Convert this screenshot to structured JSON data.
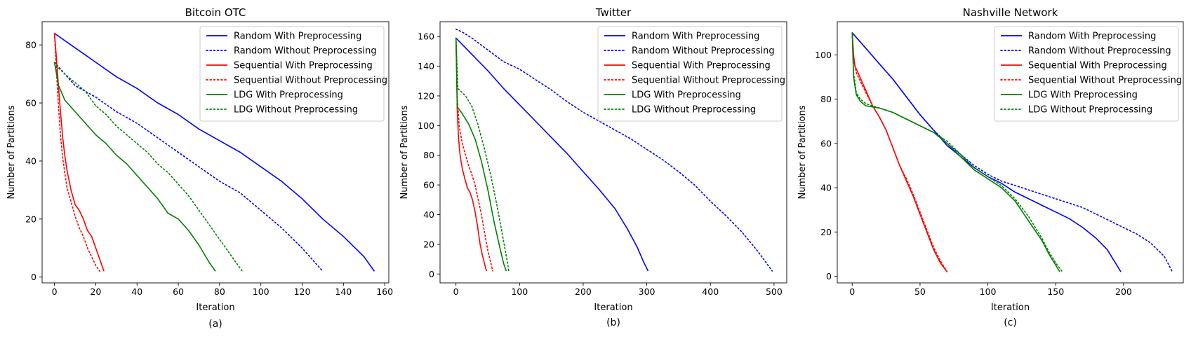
{
  "chart_data": [
    {
      "type": "line",
      "title": "Bitcoin OTC",
      "xlabel": "Iteration",
      "ylabel": "Number of Partitions",
      "caption": "(a)",
      "xlim": [
        -6,
        162
      ],
      "ylim": [
        -2,
        88
      ],
      "xticks": [
        0,
        20,
        40,
        60,
        80,
        100,
        120,
        140,
        160
      ],
      "yticks": [
        0,
        20,
        40,
        60,
        80
      ],
      "legend_position": "top-right",
      "series": [
        {
          "name": "Random With Preprocessing",
          "color": "#0000ff",
          "dash": "solid",
          "x": [
            0,
            10,
            20,
            30,
            40,
            50,
            60,
            70,
            80,
            90,
            100,
            110,
            120,
            130,
            140,
            150,
            155
          ],
          "y": [
            84,
            79,
            74,
            69,
            65,
            60,
            56,
            51,
            47,
            43,
            38,
            33,
            27,
            20,
            14,
            7,
            2
          ]
        },
        {
          "name": "Random Without Preprocessing",
          "color": "#0000ff",
          "dash": "dotted",
          "x": [
            0,
            10,
            20,
            30,
            40,
            50,
            60,
            70,
            80,
            90,
            100,
            110,
            120,
            130
          ],
          "y": [
            74,
            66,
            62,
            57,
            53,
            48,
            43,
            38,
            33,
            29,
            23,
            17,
            10,
            2
          ]
        },
        {
          "name": "Sequential With Preprocessing",
          "color": "#ff0000",
          "dash": "solid",
          "x": [
            0,
            1,
            2,
            3,
            4,
            5,
            6,
            8,
            10,
            12,
            14,
            16,
            18,
            20,
            22,
            24
          ],
          "y": [
            84,
            75,
            65,
            56,
            48,
            42,
            37,
            30,
            25,
            23,
            20,
            16,
            14,
            10,
            6,
            2
          ]
        },
        {
          "name": "Sequential Without Preprocessing",
          "color": "#ff0000",
          "dash": "dotted",
          "x": [
            0,
            1,
            2,
            3,
            4,
            5,
            6,
            8,
            10,
            12,
            14,
            16,
            18,
            20,
            22
          ],
          "y": [
            84,
            70,
            58,
            48,
            41,
            36,
            31,
            26,
            21,
            17,
            14,
            10,
            7,
            4,
            2
          ]
        },
        {
          "name": "LDG With Preprocessing",
          "color": "#008000",
          "dash": "solid",
          "x": [
            0,
            2,
            5,
            10,
            15,
            20,
            25,
            30,
            35,
            40,
            45,
            50,
            55,
            60,
            65,
            70,
            75,
            78
          ],
          "y": [
            74,
            66,
            61,
            57,
            53,
            49,
            46,
            42,
            39,
            35,
            31,
            27,
            22,
            20,
            16,
            11,
            5,
            2
          ]
        },
        {
          "name": "LDG Without Preprocessing",
          "color": "#008000",
          "dash": "dotted",
          "x": [
            0,
            2,
            5,
            10,
            15,
            20,
            25,
            30,
            35,
            40,
            45,
            50,
            55,
            60,
            65,
            70,
            75,
            80,
            85,
            91
          ],
          "y": [
            74,
            72,
            70,
            67,
            64,
            59,
            56,
            52,
            49,
            46,
            43,
            39,
            36,
            32,
            28,
            23,
            18,
            13,
            8,
            2
          ]
        }
      ]
    },
    {
      "type": "line",
      "title": "Twitter",
      "xlabel": "Iteration",
      "ylabel": "Number of Partitions",
      "caption": "(b)",
      "xlim": [
        -25,
        520
      ],
      "ylim": [
        -6,
        170
      ],
      "xticks": [
        0,
        100,
        200,
        300,
        400,
        500
      ],
      "yticks": [
        0,
        20,
        40,
        60,
        80,
        100,
        120,
        140,
        160
      ],
      "legend_position": "top-right",
      "series": [
        {
          "name": "Random With Preprocessing",
          "color": "#0000ff",
          "dash": "solid",
          "x": [
            0,
            25,
            50,
            75,
            100,
            125,
            150,
            175,
            200,
            225,
            250,
            270,
            285,
            295,
            302
          ],
          "y": [
            159,
            148,
            137,
            125,
            114,
            103,
            92,
            81,
            69,
            57,
            44,
            30,
            18,
            8,
            2
          ]
        },
        {
          "name": "Random Without Preprocessing",
          "color": "#0000ff",
          "dash": "dotted",
          "x": [
            0,
            10,
            25,
            50,
            75,
            100,
            125,
            150,
            175,
            200,
            225,
            250,
            275,
            300,
            325,
            350,
            375,
            400,
            425,
            450,
            475,
            497
          ],
          "y": [
            165,
            163,
            159,
            151,
            143,
            138,
            131,
            124,
            116,
            109,
            103,
            97,
            91,
            84,
            77,
            69,
            60,
            49,
            39,
            28,
            15,
            2
          ]
        },
        {
          "name": "Sequential With Preprocessing",
          "color": "#ff0000",
          "dash": "solid",
          "x": [
            0,
            1,
            2,
            4,
            6,
            8,
            10,
            14,
            18,
            22,
            26,
            30,
            34,
            38,
            42,
            46,
            48
          ],
          "y": [
            159,
            140,
            110,
            92,
            82,
            76,
            71,
            64,
            58,
            55,
            50,
            42,
            32,
            20,
            12,
            5,
            2
          ]
        },
        {
          "name": "Sequential Without Preprocessing",
          "color": "#ff0000",
          "dash": "dotted",
          "x": [
            0,
            2,
            5,
            10,
            15,
            20,
            25,
            30,
            35,
            40,
            45,
            50,
            55,
            58
          ],
          "y": [
            159,
            120,
            100,
            88,
            80,
            73,
            67,
            60,
            50,
            40,
            28,
            16,
            7,
            2
          ]
        },
        {
          "name": "LDG With Preprocessing",
          "color": "#008000",
          "dash": "solid",
          "x": [
            0,
            2,
            5,
            10,
            20,
            30,
            40,
            50,
            60,
            70,
            75,
            79
          ],
          "y": [
            159,
            112,
            111,
            108,
            101,
            91,
            76,
            57,
            35,
            16,
            7,
            2
          ]
        },
        {
          "name": "LDG Without Preprocessing",
          "color": "#008000",
          "dash": "dotted",
          "x": [
            0,
            3,
            8,
            15,
            25,
            35,
            45,
            55,
            65,
            75,
            80,
            83
          ],
          "y": [
            159,
            125,
            123,
            120,
            113,
            100,
            84,
            66,
            45,
            22,
            10,
            2
          ]
        }
      ]
    },
    {
      "type": "line",
      "title": "Nashville Network",
      "xlabel": "Iteration",
      "ylabel": "Number of Partitions",
      "caption": "(c)",
      "xlim": [
        -11,
        244
      ],
      "ylim": [
        -3,
        115
      ],
      "xticks": [
        0,
        50,
        100,
        150,
        200
      ],
      "yticks": [
        0,
        20,
        40,
        60,
        80,
        100
      ],
      "legend_position": "top-right",
      "series": [
        {
          "name": "Random With Preprocessing",
          "color": "#0000ff",
          "dash": "solid",
          "x": [
            0,
            10,
            20,
            30,
            40,
            50,
            60,
            70,
            80,
            90,
            100,
            110,
            120,
            130,
            140,
            150,
            160,
            170,
            180,
            188,
            193,
            198
          ],
          "y": [
            110,
            103,
            96,
            89,
            81,
            73,
            66,
            59,
            54,
            49,
            45,
            42,
            38,
            35,
            32,
            29,
            26,
            22,
            17,
            12,
            7,
            2
          ]
        },
        {
          "name": "Random Without Preprocessing",
          "color": "#0000ff",
          "dash": "dotted",
          "x": [
            0,
            10,
            20,
            30,
            40,
            50,
            60,
            70,
            80,
            90,
            100,
            110,
            120,
            130,
            140,
            150,
            160,
            170,
            180,
            190,
            200,
            210,
            220,
            230,
            236
          ],
          "y": [
            110,
            103,
            96,
            89,
            81,
            73,
            66,
            60,
            55,
            50,
            46,
            43,
            41,
            39,
            37,
            35,
            33,
            31,
            28,
            25,
            22,
            19,
            15,
            9,
            2
          ]
        },
        {
          "name": "Sequential With Preprocessing",
          "color": "#ff0000",
          "dash": "solid",
          "x": [
            0,
            1,
            2,
            5,
            10,
            15,
            20,
            25,
            30,
            35,
            40,
            45,
            50,
            55,
            60,
            65,
            70
          ],
          "y": [
            110,
            100,
            95,
            91,
            84,
            77,
            72,
            66,
            58,
            50,
            43,
            36,
            28,
            20,
            12,
            6,
            2
          ]
        },
        {
          "name": "Sequential Without Preprocessing",
          "color": "#ff0000",
          "dash": "dotted",
          "x": [
            0,
            1,
            3,
            6,
            10,
            15,
            20,
            25,
            30,
            35,
            40,
            45,
            50,
            55,
            60,
            65,
            70
          ],
          "y": [
            110,
            98,
            92,
            88,
            83,
            77,
            72,
            66,
            58,
            50,
            44,
            37,
            29,
            21,
            13,
            7,
            2
          ]
        },
        {
          "name": "LDG With Preprocessing",
          "color": "#008000",
          "dash": "solid",
          "x": [
            0,
            1,
            3,
            6,
            10,
            20,
            30,
            40,
            50,
            60,
            70,
            80,
            90,
            100,
            110,
            120,
            130,
            140,
            145,
            150,
            153
          ],
          "y": [
            110,
            90,
            82,
            79,
            77,
            76,
            74,
            71,
            68,
            65,
            60,
            54,
            48,
            44,
            40,
            34,
            25,
            16,
            10,
            5,
            2
          ]
        },
        {
          "name": "LDG Without Preprocessing",
          "color": "#008000",
          "dash": "dotted",
          "x": [
            0,
            1,
            3,
            6,
            10,
            20,
            30,
            40,
            50,
            60,
            70,
            80,
            90,
            100,
            110,
            120,
            130,
            140,
            145,
            150,
            155
          ],
          "y": [
            110,
            92,
            83,
            80,
            78,
            76,
            74,
            71,
            68,
            65,
            61,
            55,
            49,
            45,
            41,
            35,
            27,
            17,
            11,
            6,
            2
          ]
        }
      ]
    }
  ]
}
